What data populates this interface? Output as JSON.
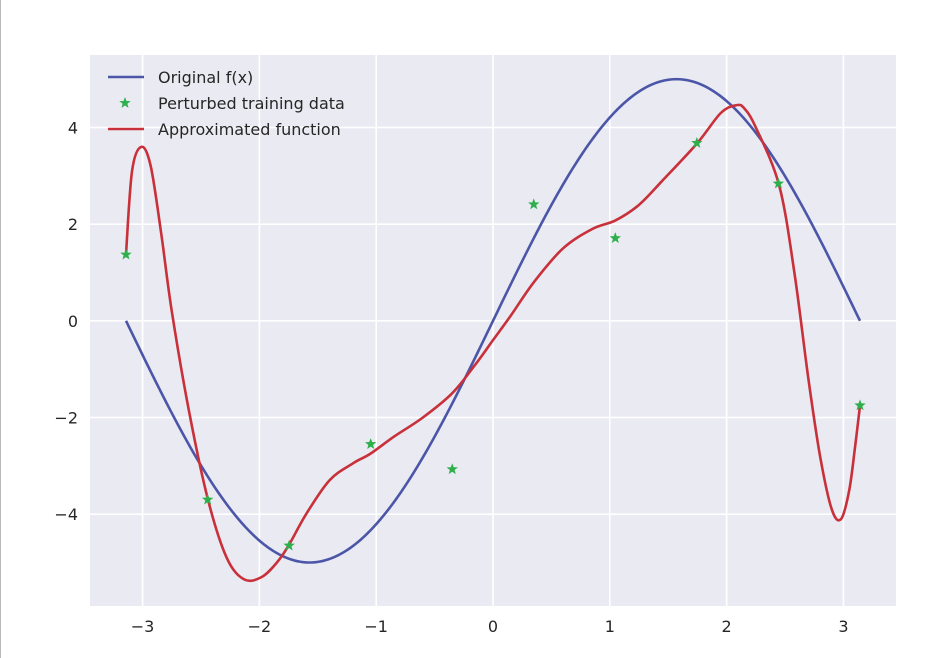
{
  "chart_data": {
    "type": "line",
    "title": "",
    "xlabel": "",
    "ylabel": "",
    "xlim": [
      -3.45,
      3.45
    ],
    "ylim": [
      -5.9,
      5.5
    ],
    "xticks": [
      -3,
      -2,
      -1,
      0,
      1,
      2,
      3
    ],
    "xtick_labels": [
      "−3",
      "−2",
      "−1",
      "0",
      "1",
      "2",
      "3"
    ],
    "yticks": [
      -4,
      -2,
      0,
      2,
      4
    ],
    "ytick_labels": [
      "−4",
      "−2",
      "0",
      "2",
      "4"
    ],
    "grid": true,
    "background": "#eaeaf2",
    "legend_position": "top-left",
    "series": [
      {
        "name": "Original f(x)",
        "kind": "line",
        "color": "#4c56a8",
        "function": "5*sin(x)",
        "x_range": [
          -3.14159,
          3.14159
        ]
      },
      {
        "name": "Perturbed training data",
        "kind": "scatter",
        "marker": "star",
        "color": "#2db04b",
        "x": [
          -3.142,
          -2.443,
          -1.745,
          -1.047,
          -0.349,
          0.349,
          1.047,
          1.745,
          2.443,
          3.142
        ],
        "y": [
          1.37,
          -3.7,
          -4.65,
          -2.55,
          -3.07,
          2.41,
          1.71,
          3.68,
          2.84,
          -1.75
        ]
      },
      {
        "name": "Approximated function",
        "kind": "line",
        "color": "#c8303a",
        "x": [
          -3.142,
          -3.09,
          -3.01,
          -2.93,
          -2.84,
          -2.75,
          -2.6,
          -2.44,
          -2.28,
          -2.13,
          -1.98,
          -1.85,
          -1.75,
          -1.6,
          -1.4,
          -1.2,
          -1.05,
          -0.85,
          -0.6,
          -0.35,
          -0.15,
          0.0,
          0.15,
          0.35,
          0.6,
          0.85,
          1.05,
          1.25,
          1.45,
          1.75,
          1.95,
          2.08,
          2.15,
          2.25,
          2.45,
          2.58,
          2.7,
          2.8,
          2.9,
          2.98,
          3.05,
          3.1,
          3.142
        ],
        "y": [
          1.37,
          3.1,
          3.6,
          3.2,
          1.8,
          0.2,
          -1.9,
          -3.7,
          -4.9,
          -5.35,
          -5.3,
          -5.0,
          -4.65,
          -4.0,
          -3.3,
          -2.95,
          -2.75,
          -2.4,
          -2.0,
          -1.5,
          -0.9,
          -0.4,
          0.1,
          0.8,
          1.5,
          1.9,
          2.08,
          2.4,
          2.9,
          3.68,
          4.3,
          4.46,
          4.4,
          4.0,
          2.8,
          1.0,
          -1.2,
          -2.8,
          -3.9,
          -4.1,
          -3.5,
          -2.6,
          -1.75
        ]
      }
    ]
  }
}
